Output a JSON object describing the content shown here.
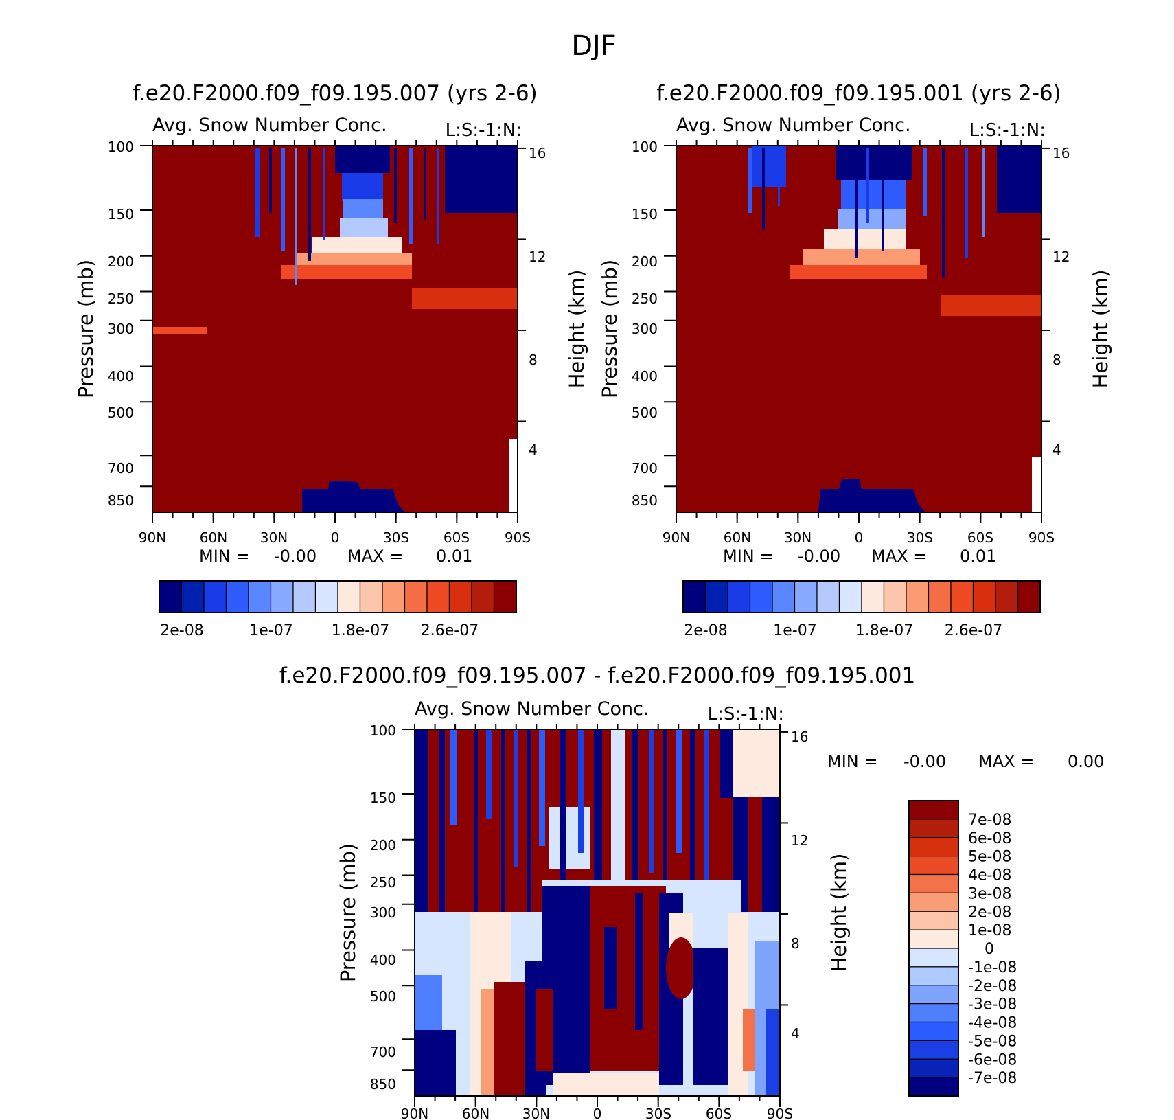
{
  "page_title": "DJF",
  "colors": {
    "seq_levels": [
      "#00007f",
      "#0020b0",
      "#1a3be8",
      "#2f5cff",
      "#5a86ff",
      "#87a9ff",
      "#b4c9ff",
      "#d8e7ff",
      "#fde9de",
      "#fcc6ad",
      "#fa9b74",
      "#f56d45",
      "#ef4a24",
      "#d8300f",
      "#b21e0b",
      "#8b0000"
    ],
    "diff_levels": [
      "#000080",
      "#0a22b8",
      "#1a3fe4",
      "#2b5cff",
      "#4e7fff",
      "#7ea4ff",
      "#aecaff",
      "#d6e6ff",
      "#fdebe0",
      "#fcc4a8",
      "#f99d75",
      "#f4724a",
      "#ec4b27",
      "#d7300f",
      "#b11f0b",
      "#8b0000"
    ]
  },
  "chart_data": [
    {
      "type": "heatmap",
      "title": "f.e20.F2000.f09_f09.195.007 (yrs 2-6)",
      "subtitle": "Avg. Snow Number Conc.",
      "corner_label": "L:S:-1:N:",
      "xlabel": "",
      "ylabel": "Pressure (mb)",
      "ylabel_right": "Height (km)",
      "x_ticks": [
        "90N",
        "60N",
        "30N",
        "0",
        "30S",
        "60S",
        "90S"
      ],
      "y_ticks": [
        "100",
        "150",
        "200",
        "250",
        "300",
        "400",
        "500",
        "700",
        "850"
      ],
      "y_tick_values": [
        100,
        150,
        200,
        250,
        300,
        400,
        500,
        700,
        850
      ],
      "y_right_ticks": [
        "16",
        "12",
        "8",
        "4"
      ],
      "y_right_values": [
        16,
        12,
        8,
        4
      ],
      "ylim": [
        100,
        1000
      ],
      "x_range": [
        90,
        -90
      ],
      "log_pressure": true,
      "stats": {
        "min_label": "MIN =",
        "min_value": "-0.00",
        "max_label": "MAX =",
        "max_value": "0.01"
      },
      "colorbar": {
        "orientation": "horizontal",
        "labels": [
          "2e-08",
          "1e-07",
          "1.8e-07",
          "2.6e-07"
        ]
      }
    },
    {
      "type": "heatmap",
      "title": "f.e20.F2000.f09_f09.195.001 (yrs 2-6)",
      "subtitle": "Avg. Snow Number Conc.",
      "corner_label": "L:S:-1:N:",
      "xlabel": "",
      "ylabel": "Pressure (mb)",
      "ylabel_right": "Height (km)",
      "x_ticks": [
        "90N",
        "60N",
        "30N",
        "0",
        "30S",
        "60S",
        "90S"
      ],
      "y_ticks": [
        "100",
        "150",
        "200",
        "250",
        "300",
        "400",
        "500",
        "700",
        "850"
      ],
      "y_tick_values": [
        100,
        150,
        200,
        250,
        300,
        400,
        500,
        700,
        850
      ],
      "y_right_ticks": [
        "16",
        "12",
        "8",
        "4"
      ],
      "y_right_values": [
        16,
        12,
        8,
        4
      ],
      "ylim": [
        100,
        1000
      ],
      "x_range": [
        90,
        -90
      ],
      "log_pressure": true,
      "stats": {
        "min_label": "MIN =",
        "min_value": "-0.00",
        "max_label": "MAX =",
        "max_value": "0.01"
      },
      "colorbar": {
        "orientation": "horizontal",
        "labels": [
          "2e-08",
          "1e-07",
          "1.8e-07",
          "2.6e-07"
        ]
      }
    },
    {
      "type": "heatmap",
      "title": "f.e20.F2000.f09_f09.195.007 - f.e20.F2000.f09_f09.195.001",
      "subtitle": "Avg. Snow Number Conc.",
      "corner_label": "L:S:-1:N:",
      "xlabel": "",
      "ylabel": "Pressure (mb)",
      "ylabel_right": "Height (km)",
      "x_ticks": [
        "90N",
        "60N",
        "30N",
        "0",
        "30S",
        "60S",
        "90S"
      ],
      "y_ticks": [
        "100",
        "150",
        "200",
        "250",
        "300",
        "400",
        "500",
        "700",
        "850"
      ],
      "y_tick_values": [
        100,
        150,
        200,
        250,
        300,
        400,
        500,
        700,
        850
      ],
      "y_right_ticks": [
        "16",
        "12",
        "8",
        "4"
      ],
      "y_right_values": [
        16,
        12,
        8,
        4
      ],
      "ylim": [
        100,
        1000
      ],
      "x_range": [
        90,
        -90
      ],
      "log_pressure": true,
      "stats": {
        "min_label": "MIN =",
        "min_value": "-0.00",
        "max_label": "MAX =",
        "max_value": "0.00"
      },
      "colorbar": {
        "orientation": "vertical",
        "labels": [
          "7e-08",
          "6e-08",
          "5e-08",
          "4e-08",
          "3e-08",
          "2e-08",
          "1e-08",
          "0",
          "-1e-08",
          "-2e-08",
          "-3e-08",
          "-4e-08",
          "-5e-08",
          "-6e-08",
          "-7e-08"
        ]
      }
    }
  ]
}
